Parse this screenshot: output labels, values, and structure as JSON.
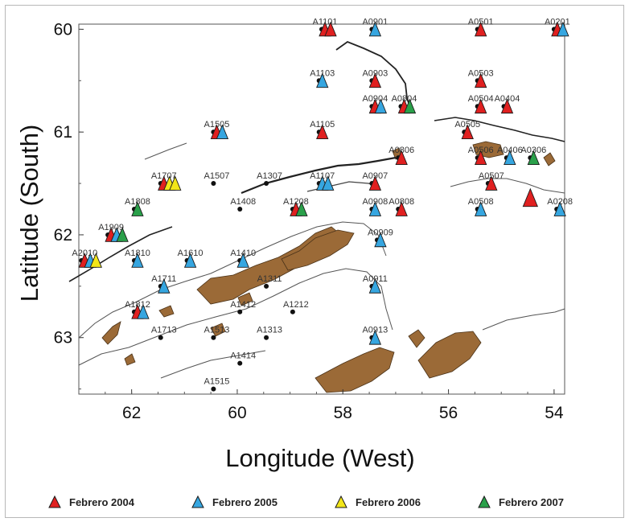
{
  "map": {
    "xlabel": "Longitude (West)",
    "ylabel": "Latitude (South)",
    "x_ticks": [
      "62",
      "60",
      "58",
      "56",
      "54"
    ],
    "y_ticks": [
      "60",
      "61",
      "62",
      "63"
    ],
    "x_range": [
      63.0,
      53.8
    ],
    "y_range": [
      59.95,
      63.55
    ],
    "land_color": "#9b6a37",
    "coast_color": "#555555",
    "campaign_colors": {
      "2004": "#e02020",
      "2005": "#36a6e0",
      "2006": "#f2e619",
      "2007": "#2aa04a"
    }
  },
  "legend": [
    {
      "label": "Febrero 2004",
      "color": "#e02020"
    },
    {
      "label": "Febrero 2005",
      "color": "#36a6e0"
    },
    {
      "label": "Febrero 2006",
      "color": "#f2e619"
    },
    {
      "label": "Febrero 2007",
      "color": "#2aa04a"
    }
  ],
  "stations": [
    {
      "id": "A1101",
      "lon": 58.4,
      "lat": 60.0,
      "campaigns": [
        "2004",
        "2004"
      ]
    },
    {
      "id": "A0901",
      "lon": 57.45,
      "lat": 60.0,
      "campaigns": [
        "2005"
      ]
    },
    {
      "id": "A0501",
      "lon": 55.45,
      "lat": 60.0,
      "campaigns": [
        "2004"
      ]
    },
    {
      "id": "A0201",
      "lon": 54.0,
      "lat": 60.0,
      "campaigns": [
        "2004",
        "2005"
      ]
    },
    {
      "id": "A1103",
      "lon": 58.45,
      "lat": 60.5,
      "campaigns": [
        "2005"
      ]
    },
    {
      "id": "A0903",
      "lon": 57.45,
      "lat": 60.5,
      "campaigns": [
        "2004"
      ]
    },
    {
      "id": "A0503",
      "lon": 55.45,
      "lat": 60.5,
      "campaigns": [
        "2004"
      ]
    },
    {
      "id": "A0904",
      "lon": 57.45,
      "lat": 60.75,
      "campaigns": [
        "2004",
        "2005"
      ]
    },
    {
      "id": "A0804",
      "lon": 56.9,
      "lat": 60.75,
      "campaigns": [
        "2004",
        "2007"
      ]
    },
    {
      "id": "A0504",
      "lon": 55.45,
      "lat": 60.75,
      "campaigns": [
        "2004"
      ]
    },
    {
      "id": "A0404",
      "lon": 54.95,
      "lat": 60.75,
      "campaigns": [
        "2004"
      ]
    },
    {
      "id": "A1505",
      "lon": 60.45,
      "lat": 61.0,
      "campaigns": [
        "2004",
        "2005"
      ]
    },
    {
      "id": "A1105",
      "lon": 58.45,
      "lat": 61.0,
      "campaigns": [
        "2004"
      ]
    },
    {
      "id": "A0505",
      "lon": 55.7,
      "lat": 61.0,
      "campaigns": [
        "2004"
      ]
    },
    {
      "id": "A0806",
      "lon": 56.95,
      "lat": 61.25,
      "campaigns": [
        "2004"
      ]
    },
    {
      "id": "A0506",
      "lon": 55.45,
      "lat": 61.25,
      "campaigns": [
        "2004"
      ]
    },
    {
      "id": "A0406",
      "lon": 54.9,
      "lat": 61.25,
      "campaigns": [
        "2005"
      ]
    },
    {
      "id": "A0306",
      "lon": 54.45,
      "lat": 61.25,
      "campaigns": [
        "2007"
      ]
    },
    {
      "id": "A1707",
      "lon": 61.45,
      "lat": 61.5,
      "campaigns": [
        "2004",
        "2006",
        "2006"
      ]
    },
    {
      "id": "A1507",
      "lon": 60.45,
      "lat": 61.5,
      "campaigns": []
    },
    {
      "id": "A1307",
      "lon": 59.45,
      "lat": 61.5,
      "campaigns": []
    },
    {
      "id": "A1107",
      "lon": 58.45,
      "lat": 61.5,
      "campaigns": [
        "2005",
        "2005"
      ]
    },
    {
      "id": "A0907",
      "lon": 57.45,
      "lat": 61.5,
      "campaigns": [
        "2004"
      ]
    },
    {
      "id": "A0507",
      "lon": 55.25,
      "lat": 61.5,
      "campaigns": [
        "2004"
      ]
    },
    {
      "id": "A1808",
      "lon": 61.95,
      "lat": 61.75,
      "campaigns": [
        "2007"
      ]
    },
    {
      "id": "A1408",
      "lon": 59.95,
      "lat": 61.75,
      "campaigns": []
    },
    {
      "id": "A1208",
      "lon": 58.95,
      "lat": 61.75,
      "campaigns": [
        "2004",
        "2007"
      ]
    },
    {
      "id": "A0908",
      "lon": 57.45,
      "lat": 61.75,
      "campaigns": [
        "2005"
      ]
    },
    {
      "id": "A0808",
      "lon": 56.95,
      "lat": 61.75,
      "campaigns": [
        "2004"
      ]
    },
    {
      "id": "A0508",
      "lon": 55.45,
      "lat": 61.75,
      "campaigns": [
        "2005"
      ]
    },
    {
      "id": "A0208",
      "lon": 53.95,
      "lat": 61.75,
      "campaigns": [
        "2005"
      ]
    },
    {
      "id": "A1909",
      "lon": 62.45,
      "lat": 62.0,
      "campaigns": [
        "2004",
        "2005",
        "2007"
      ]
    },
    {
      "id": "A0909",
      "lon": 57.35,
      "lat": 62.05,
      "campaigns": [
        "2005"
      ]
    },
    {
      "id": "A2010",
      "lon": 62.95,
      "lat": 62.25,
      "campaigns": [
        "2004",
        "2005",
        "2006"
      ]
    },
    {
      "id": "A1810",
      "lon": 61.95,
      "lat": 62.25,
      "campaigns": [
        "2005"
      ]
    },
    {
      "id": "A1610",
      "lon": 60.95,
      "lat": 62.25,
      "campaigns": [
        "2005"
      ]
    },
    {
      "id": "A1410",
      "lon": 59.95,
      "lat": 62.25,
      "campaigns": [
        "2005"
      ]
    },
    {
      "id": "A1711",
      "lon": 61.45,
      "lat": 62.5,
      "campaigns": [
        "2005"
      ]
    },
    {
      "id": "A1311",
      "lon": 59.45,
      "lat": 62.5,
      "campaigns": []
    },
    {
      "id": "A0911",
      "lon": 57.45,
      "lat": 62.5,
      "campaigns": [
        "2005"
      ]
    },
    {
      "id": "A1812",
      "lon": 61.95,
      "lat": 62.75,
      "campaigns": [
        "2004",
        "2005"
      ]
    },
    {
      "id": "A1412",
      "lon": 59.95,
      "lat": 62.75,
      "campaigns": []
    },
    {
      "id": "A1212",
      "lon": 58.95,
      "lat": 62.75,
      "campaigns": []
    },
    {
      "id": "A1713",
      "lon": 61.45,
      "lat": 63.0,
      "campaigns": []
    },
    {
      "id": "A1513",
      "lon": 60.45,
      "lat": 63.0,
      "campaigns": []
    },
    {
      "id": "A1313",
      "lon": 59.45,
      "lat": 63.0,
      "campaigns": []
    },
    {
      "id": "A0913",
      "lon": 57.45,
      "lat": 63.0,
      "campaigns": [
        "2005"
      ]
    },
    {
      "id": "A1414",
      "lon": 59.95,
      "lat": 63.25,
      "campaigns": []
    },
    {
      "id": "A1515",
      "lon": 60.45,
      "lat": 63.5,
      "campaigns": []
    }
  ],
  "extra_markers": [
    {
      "lon": 54.45,
      "lat": 61.68,
      "campaign": "2004"
    }
  ]
}
